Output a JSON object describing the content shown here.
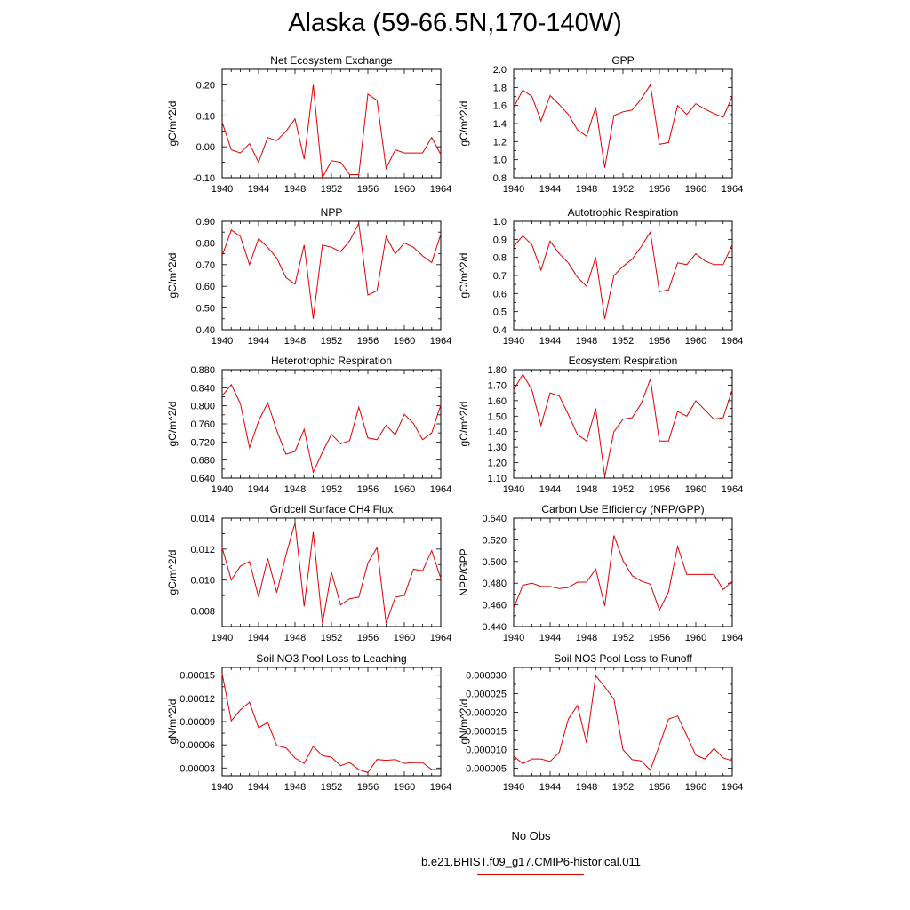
{
  "title": "Alaska (59-66.5N,170-140W)",
  "legend": {
    "items": [
      {
        "label": "No Obs",
        "color": "#4444cc",
        "style": "dashed"
      },
      {
        "label": "b.e21.BHIST.f09_g17.CMIP6-historical.011",
        "color": "#e00000",
        "style": "solid"
      }
    ]
  },
  "chart_data": [
    {
      "type": "line",
      "title": "Net Ecosystem Exchange",
      "ylabel": "gC/m^2/d",
      "xlim": [
        1940,
        1964
      ],
      "ylim": [
        -0.1,
        0.25
      ],
      "xticks": [
        1940,
        1944,
        1948,
        1952,
        1956,
        1960,
        1964
      ],
      "yticks": [
        -0.1,
        0.0,
        0.1,
        0.2
      ],
      "ytick_labels": [
        "-0.10",
        "0.00",
        "0.10",
        "0.20"
      ],
      "series": [
        {
          "color": "#e00000",
          "x": [
            1940,
            1941,
            1942,
            1943,
            1944,
            1945,
            1946,
            1947,
            1948,
            1949,
            1950,
            1951,
            1952,
            1953,
            1954,
            1955,
            1956,
            1957,
            1958,
            1959,
            1960,
            1961,
            1962,
            1963,
            1964
          ],
          "values": [
            0.08,
            -0.01,
            -0.02,
            0.01,
            -0.05,
            0.03,
            0.02,
            0.05,
            0.09,
            -0.04,
            0.2,
            -0.1,
            -0.045,
            -0.05,
            -0.09,
            -0.09,
            0.17,
            0.15,
            -0.07,
            -0.01,
            -0.02,
            -0.02,
            -0.02,
            0.03,
            -0.025
          ]
        }
      ]
    },
    {
      "type": "line",
      "title": "GPP",
      "ylabel": "gC/m^2/d",
      "xlim": [
        1940,
        1964
      ],
      "ylim": [
        0.8,
        2.0
      ],
      "xticks": [
        1940,
        1944,
        1948,
        1952,
        1956,
        1960,
        1964
      ],
      "yticks": [
        0.8,
        1.0,
        1.2,
        1.4,
        1.6,
        1.8,
        2.0
      ],
      "ytick_labels": [
        "0.8",
        "1.0",
        "1.2",
        "1.4",
        "1.6",
        "1.8",
        "2.0"
      ],
      "series": [
        {
          "color": "#e00000",
          "x": [
            1940,
            1941,
            1942,
            1943,
            1944,
            1945,
            1946,
            1947,
            1948,
            1949,
            1950,
            1951,
            1952,
            1953,
            1954,
            1955,
            1956,
            1957,
            1958,
            1959,
            1960,
            1961,
            1962,
            1963,
            1964
          ],
          "values": [
            1.58,
            1.77,
            1.7,
            1.43,
            1.71,
            1.61,
            1.5,
            1.33,
            1.26,
            1.58,
            0.91,
            1.49,
            1.53,
            1.55,
            1.67,
            1.83,
            1.17,
            1.19,
            1.6,
            1.5,
            1.62,
            1.56,
            1.51,
            1.47,
            1.7
          ]
        }
      ]
    },
    {
      "type": "line",
      "title": "NPP",
      "ylabel": "gC/m^2/d",
      "xlim": [
        1940,
        1964
      ],
      "ylim": [
        0.4,
        0.9
      ],
      "xticks": [
        1940,
        1944,
        1948,
        1952,
        1956,
        1960,
        1964
      ],
      "yticks": [
        0.4,
        0.5,
        0.6,
        0.7,
        0.8,
        0.9
      ],
      "ytick_labels": [
        "0.40",
        "0.50",
        "0.60",
        "0.70",
        "0.80",
        "0.90"
      ],
      "series": [
        {
          "color": "#e00000",
          "x": [
            1940,
            1941,
            1942,
            1943,
            1944,
            1945,
            1946,
            1947,
            1948,
            1949,
            1950,
            1951,
            1952,
            1953,
            1954,
            1955,
            1956,
            1957,
            1958,
            1959,
            1960,
            1961,
            1962,
            1963,
            1964
          ],
          "values": [
            0.74,
            0.86,
            0.83,
            0.7,
            0.82,
            0.78,
            0.73,
            0.64,
            0.61,
            0.79,
            0.45,
            0.79,
            0.78,
            0.76,
            0.81,
            0.89,
            0.56,
            0.58,
            0.83,
            0.75,
            0.8,
            0.78,
            0.74,
            0.71,
            0.84
          ]
        }
      ]
    },
    {
      "type": "line",
      "title": "Autotrophic Respiration",
      "ylabel": "gC/m^2/d",
      "xlim": [
        1940,
        1964
      ],
      "ylim": [
        0.4,
        1.0
      ],
      "xticks": [
        1940,
        1944,
        1948,
        1952,
        1956,
        1960,
        1964
      ],
      "yticks": [
        0.4,
        0.5,
        0.6,
        0.7,
        0.8,
        0.9,
        1.0
      ],
      "ytick_labels": [
        "0.4",
        "0.5",
        "0.6",
        "0.7",
        "0.8",
        "0.9",
        "1.0"
      ],
      "series": [
        {
          "color": "#e00000",
          "x": [
            1940,
            1941,
            1942,
            1943,
            1944,
            1945,
            1946,
            1947,
            1948,
            1949,
            1950,
            1951,
            1952,
            1953,
            1954,
            1955,
            1956,
            1957,
            1958,
            1959,
            1960,
            1961,
            1962,
            1963,
            1964
          ],
          "values": [
            0.86,
            0.92,
            0.87,
            0.73,
            0.89,
            0.82,
            0.77,
            0.69,
            0.64,
            0.8,
            0.46,
            0.7,
            0.75,
            0.79,
            0.86,
            0.94,
            0.61,
            0.62,
            0.77,
            0.76,
            0.82,
            0.78,
            0.76,
            0.76,
            0.87
          ]
        }
      ]
    },
    {
      "type": "line",
      "title": "Heterotrophic Respiration",
      "ylabel": "gC/m^2/d",
      "xlim": [
        1940,
        1964
      ],
      "ylim": [
        0.64,
        0.88
      ],
      "xticks": [
        1940,
        1944,
        1948,
        1952,
        1956,
        1960,
        1964
      ],
      "yticks": [
        0.64,
        0.68,
        0.72,
        0.76,
        0.8,
        0.84,
        0.88
      ],
      "ytick_labels": [
        "0.640",
        "0.680",
        "0.720",
        "0.760",
        "0.800",
        "0.840",
        "0.880"
      ],
      "series": [
        {
          "color": "#e00000",
          "x": [
            1940,
            1941,
            1942,
            1943,
            1944,
            1945,
            1946,
            1947,
            1948,
            1949,
            1950,
            1951,
            1952,
            1953,
            1954,
            1955,
            1956,
            1957,
            1958,
            1959,
            1960,
            1961,
            1962,
            1963,
            1964
          ],
          "values": [
            0.822,
            0.847,
            0.805,
            0.707,
            0.766,
            0.807,
            0.745,
            0.693,
            0.699,
            0.748,
            0.653,
            0.697,
            0.737,
            0.716,
            0.723,
            0.797,
            0.729,
            0.725,
            0.757,
            0.736,
            0.781,
            0.761,
            0.725,
            0.74,
            0.802
          ]
        }
      ]
    },
    {
      "type": "line",
      "title": "Ecosystem Respiration",
      "ylabel": "gC/m^2/d",
      "xlim": [
        1940,
        1964
      ],
      "ylim": [
        1.1,
        1.8
      ],
      "xticks": [
        1940,
        1944,
        1948,
        1952,
        1956,
        1960,
        1964
      ],
      "yticks": [
        1.1,
        1.2,
        1.3,
        1.4,
        1.5,
        1.6,
        1.7,
        1.8
      ],
      "ytick_labels": [
        "1.10",
        "1.20",
        "1.30",
        "1.40",
        "1.50",
        "1.60",
        "1.70",
        "1.80"
      ],
      "series": [
        {
          "color": "#e00000",
          "x": [
            1940,
            1941,
            1942,
            1943,
            1944,
            1945,
            1946,
            1947,
            1948,
            1949,
            1950,
            1951,
            1952,
            1953,
            1954,
            1955,
            1956,
            1957,
            1958,
            1959,
            1960,
            1961,
            1962,
            1963,
            1964
          ],
          "values": [
            1.67,
            1.77,
            1.67,
            1.44,
            1.65,
            1.63,
            1.51,
            1.38,
            1.34,
            1.55,
            1.11,
            1.4,
            1.48,
            1.49,
            1.58,
            1.74,
            1.34,
            1.34,
            1.53,
            1.5,
            1.6,
            1.54,
            1.48,
            1.49,
            1.67
          ]
        }
      ]
    },
    {
      "type": "line",
      "title": "Gridcell Surface CH4 Flux",
      "ylabel": "gC/m^2/d",
      "xlim": [
        1940,
        1964
      ],
      "ylim": [
        0.007,
        0.014
      ],
      "xticks": [
        1940,
        1944,
        1948,
        1952,
        1956,
        1960,
        1964
      ],
      "yticks": [
        0.008,
        0.01,
        0.012,
        0.014
      ],
      "ytick_labels": [
        "0.008",
        "0.010",
        "0.012",
        "0.014"
      ],
      "series": [
        {
          "color": "#e00000",
          "x": [
            1940,
            1941,
            1942,
            1943,
            1944,
            1945,
            1946,
            1947,
            1948,
            1949,
            1950,
            1951,
            1952,
            1953,
            1954,
            1955,
            1956,
            1957,
            1958,
            1959,
            1960,
            1961,
            1962,
            1963,
            1964
          ],
          "values": [
            0.0121,
            0.01,
            0.0109,
            0.0112,
            0.0089,
            0.0114,
            0.0092,
            0.0116,
            0.0137,
            0.0083,
            0.0131,
            0.0072,
            0.0105,
            0.0084,
            0.0088,
            0.0089,
            0.0111,
            0.0121,
            0.0072,
            0.0089,
            0.009,
            0.0107,
            0.0106,
            0.0119,
            0.0101
          ]
        }
      ]
    },
    {
      "type": "line",
      "title": "Carbon Use Efficiency (NPP/GPP)",
      "ylabel": "NPP/GPP",
      "xlim": [
        1940,
        1964
      ],
      "ylim": [
        0.44,
        0.54
      ],
      "xticks": [
        1940,
        1944,
        1948,
        1952,
        1956,
        1960,
        1964
      ],
      "yticks": [
        0.44,
        0.46,
        0.48,
        0.5,
        0.52,
        0.54
      ],
      "ytick_labels": [
        "0.440",
        "0.460",
        "0.480",
        "0.500",
        "0.520",
        "0.540"
      ],
      "series": [
        {
          "color": "#e00000",
          "x": [
            1940,
            1941,
            1942,
            1943,
            1944,
            1945,
            1946,
            1947,
            1948,
            1949,
            1950,
            1951,
            1952,
            1953,
            1954,
            1955,
            1956,
            1957,
            1958,
            1959,
            1960,
            1961,
            1962,
            1963,
            1964
          ],
          "values": [
            0.457,
            0.478,
            0.48,
            0.477,
            0.477,
            0.475,
            0.476,
            0.481,
            0.481,
            0.493,
            0.459,
            0.524,
            0.501,
            0.487,
            0.482,
            0.479,
            0.455,
            0.472,
            0.514,
            0.488,
            0.488,
            0.488,
            0.488,
            0.474,
            0.482
          ]
        }
      ]
    },
    {
      "type": "line",
      "title": "Soil NO3 Pool Loss to Leaching",
      "ylabel": "gN/m^2/d",
      "xlim": [
        1940,
        1964
      ],
      "ylim": [
        2e-05,
        0.00016
      ],
      "xticks": [
        1940,
        1944,
        1948,
        1952,
        1956,
        1960,
        1964
      ],
      "yticks": [
        3e-05,
        6e-05,
        9e-05,
        0.00012,
        0.00015
      ],
      "ytick_labels": [
        "0.00003",
        "0.00006",
        "0.00009",
        "0.00012",
        "0.00015"
      ],
      "series": [
        {
          "color": "#e00000",
          "x": [
            1940,
            1941,
            1942,
            1943,
            1944,
            1945,
            1946,
            1947,
            1948,
            1949,
            1950,
            1951,
            1952,
            1953,
            1954,
            1955,
            1956,
            1957,
            1958,
            1959,
            1960,
            1961,
            1962,
            1963,
            1964
          ],
          "values": [
            0.000152,
            9.1e-05,
            0.000105,
            0.000115,
            8.2e-05,
            8.9e-05,
            5.9e-05,
            5.6e-05,
            4.3e-05,
            3.6e-05,
            5.8e-05,
            4.6e-05,
            4.4e-05,
            3.3e-05,
            3.7e-05,
            2.8e-05,
            2.4e-05,
            4.1e-05,
            4e-05,
            4.1e-05,
            3.6e-05,
            3.7e-05,
            3.7e-05,
            2.8e-05,
            2.8e-05
          ]
        }
      ]
    },
    {
      "type": "line",
      "title": "Soil NO3 Pool Loss to Runoff",
      "ylabel": "gN/m^2/d",
      "xlim": [
        1940,
        1964
      ],
      "ylim": [
        3e-06,
        3.2e-05
      ],
      "xticks": [
        1940,
        1944,
        1948,
        1952,
        1956,
        1960,
        1964
      ],
      "yticks": [
        5e-06,
        1e-05,
        1.5e-05,
        2e-05,
        2.5e-05,
        3e-05
      ],
      "ytick_labels": [
        "0.000005",
        "0.000010",
        "0.000015",
        "0.000020",
        "0.000025",
        "0.000030"
      ],
      "series": [
        {
          "color": "#e00000",
          "x": [
            1940,
            1941,
            1942,
            1943,
            1944,
            1945,
            1946,
            1947,
            1948,
            1949,
            1950,
            1951,
            1952,
            1953,
            1954,
            1955,
            1956,
            1957,
            1958,
            1959,
            1960,
            1961,
            1962,
            1963,
            1964
          ],
          "values": [
            8.3e-06,
            6.2e-06,
            7.5e-06,
            7.5e-06,
            6.8e-06,
            9.3e-06,
            1.82e-05,
            2.18e-05,
            1.18e-05,
            2.98e-05,
            2.68e-05,
            2.35e-05,
            1e-05,
            7.3e-06,
            7e-06,
            4.5e-06,
            1.12e-05,
            1.82e-05,
            1.9e-05,
            1.38e-05,
            8.5e-06,
            7.5e-06,
            1.03e-05,
            7.8e-06,
            7e-06
          ]
        }
      ]
    }
  ]
}
